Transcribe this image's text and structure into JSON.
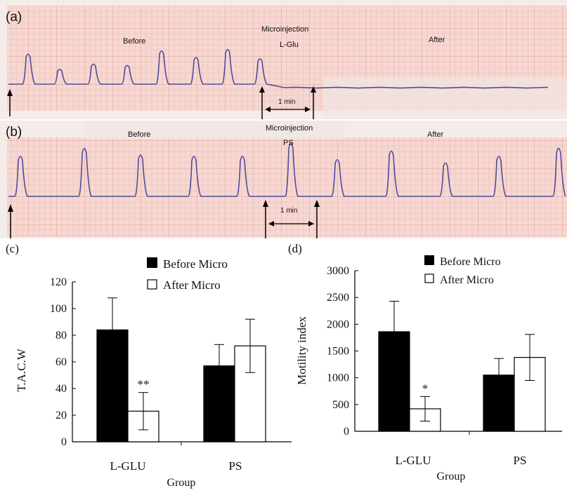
{
  "panels": {
    "a": {
      "label": "(a)",
      "before_text": "Before",
      "micro_text": "Microinjection",
      "agent_text": "L-Glu",
      "after_text": "After",
      "scale_text": "1 min"
    },
    "b": {
      "label": "(b)",
      "before_text": "Before",
      "micro_text": "Microinjection",
      "agent_text": "PS",
      "after_text": "After",
      "scale_text": "1 min"
    }
  },
  "colors": {
    "paper": "#f6d8d2",
    "paper_alt": "#f0e4e0",
    "grid_minor": "#f2b9b0",
    "grid_major": "#e49a8f",
    "trace": "#4d4d9a",
    "bar_before": "#000000",
    "bar_after": "#ffffff"
  },
  "chart_data": [
    {
      "panel_label": "(c)",
      "type": "bar",
      "xlabel": "Group",
      "ylabel": "T.A.C.W",
      "categories": [
        "L-GLU",
        "PS"
      ],
      "ylim": [
        0,
        120
      ],
      "yticks": [
        0,
        20,
        40,
        60,
        80,
        100,
        120
      ],
      "series": [
        {
          "name": "Before Micro",
          "values": [
            84,
            57
          ],
          "errors": [
            24,
            16
          ]
        },
        {
          "name": "After Micro",
          "values": [
            23,
            72
          ],
          "errors": [
            14,
            20
          ]
        }
      ],
      "annotations": [
        {
          "text": "**",
          "category": "L-GLU",
          "series": "After Micro"
        }
      ],
      "legend": "top-right",
      "grid": false
    },
    {
      "panel_label": "(d)",
      "type": "bar",
      "xlabel": "Group",
      "ylabel": "Motility index",
      "categories": [
        "L-GLU",
        "PS"
      ],
      "ylim": [
        0,
        3000
      ],
      "yticks": [
        0,
        500,
        1000,
        1500,
        2000,
        2500,
        3000
      ],
      "series": [
        {
          "name": "Before Micro",
          "values": [
            1860,
            1050
          ],
          "errors": [
            570,
            310
          ]
        },
        {
          "name": "After Micro",
          "values": [
            420,
            1380
          ],
          "errors": [
            230,
            430
          ]
        }
      ],
      "annotations": [
        {
          "text": "*",
          "category": "L-GLU",
          "series": "After Micro"
        }
      ],
      "legend": "top-right",
      "grid": false
    }
  ]
}
